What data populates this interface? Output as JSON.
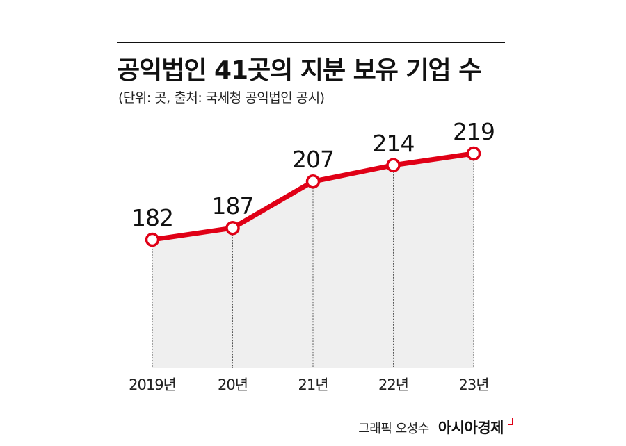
{
  "header": {
    "title": "공익법인 41곳의 지분 보유 기업 수",
    "subtitle": "(단위: 곳, 출처: 국세청 공익법인 공시)"
  },
  "footer": {
    "credit": "그래픽 오성수",
    "publisher": "아시아경제"
  },
  "colors": {
    "line": "#e00016",
    "area": "#efefef",
    "marker_fill": "#ffffff",
    "text": "#111111"
  },
  "chart_data": {
    "type": "line",
    "title": "공익법인 41곳의 지분 보유 기업 수",
    "subtitle": "(단위: 곳, 출처: 국세청 공익법인 공시)",
    "categories": [
      "2019년",
      "20년",
      "21년",
      "22년",
      "23년"
    ],
    "values": [
      182,
      187,
      207,
      214,
      219
    ],
    "data_labels": [
      "182",
      "187",
      "207",
      "214",
      "219"
    ],
    "ylim": [
      120,
      219
    ],
    "area_fill": true,
    "grid": false,
    "legend": "none",
    "xlabel": "",
    "ylabel": ""
  }
}
